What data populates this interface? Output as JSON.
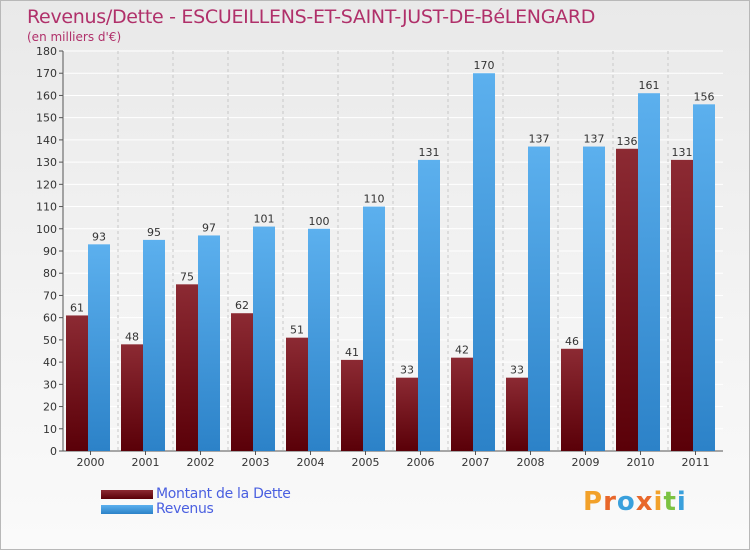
{
  "header": {
    "title": "Revenus/Dette - ESCUEILLENS-ET-SAINT-JUST-DE-BéLENGARD",
    "subtitle": "(en milliers d'€)"
  },
  "chart_data": {
    "type": "bar",
    "categories": [
      "2000",
      "2001",
      "2002",
      "2003",
      "2004",
      "2005",
      "2006",
      "2007",
      "2008",
      "2009",
      "2010",
      "2011"
    ],
    "series": [
      {
        "name": "Montant de la Dette",
        "values": [
          61,
          48,
          75,
          62,
          51,
          41,
          33,
          42,
          33,
          46,
          136,
          131
        ],
        "color": "#6b1018"
      },
      {
        "name": "Revenus",
        "values": [
          93,
          95,
          97,
          101,
          100,
          110,
          131,
          170,
          137,
          137,
          161,
          156
        ],
        "color": "#4aa3e6"
      }
    ],
    "ylim": [
      0,
      180
    ],
    "ytick_step": 10,
    "grid": true,
    "legend_position": "bottom-left"
  },
  "logo": {
    "text": "Proxiti",
    "letters": [
      {
        "ch": "P",
        "color": "#f2a12a"
      },
      {
        "ch": "r",
        "color": "#e8672b"
      },
      {
        "ch": "o",
        "color": "#3aa0dc"
      },
      {
        "ch": "x",
        "color": "#e8672b"
      },
      {
        "ch": "i",
        "color": "#f2a12a"
      },
      {
        "ch": "t",
        "color": "#7cc242"
      },
      {
        "ch": "i",
        "color": "#3aa0dc"
      }
    ]
  }
}
